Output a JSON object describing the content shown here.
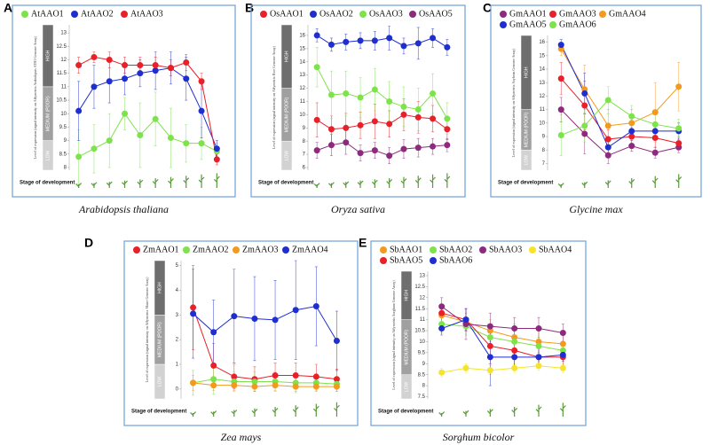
{
  "chart_data": [
    {
      "type": "line",
      "label": "A",
      "caption": "Arabidopsis thaliana",
      "xlabel": "Stage of development",
      "ylabel": "Level of expression (signal intensity on Affymetrix Arabidopsis ATH1 Genome Array)",
      "categories": [
        null,
        null,
        null,
        null,
        null,
        null,
        null,
        null,
        null,
        null
      ],
      "ylim": [
        7.9,
        13.3
      ],
      "yticks": [
        8,
        8.5,
        9,
        9.5,
        10,
        10.5,
        11,
        11.5,
        12,
        12.5,
        13
      ],
      "bands": [
        {
          "label": "LOW",
          "from": 7.9,
          "to": 9
        },
        {
          "label": "MEDIUM (POOR)",
          "from": 9,
          "to": 11
        },
        {
          "label": "HIGH",
          "from": 11,
          "to": 13.3
        }
      ],
      "series": [
        {
          "name": "AtAAO1",
          "color": "#7ee34a",
          "values": [
            8.4,
            8.7,
            9.0,
            10.0,
            9.2,
            9.8,
            9.1,
            8.9,
            8.9,
            8.6
          ],
          "errors": [
            1.0,
            0.9,
            1.0,
            0.6,
            1.2,
            1.0,
            1.1,
            0.7,
            0.6,
            0.3
          ]
        },
        {
          "name": "AtAAO2",
          "color": "#1f2ecf",
          "values": [
            10.1,
            11.0,
            11.2,
            11.3,
            11.5,
            11.6,
            11.7,
            11.3,
            10.1,
            8.7
          ],
          "errors": [
            1.1,
            0.8,
            0.8,
            0.6,
            0.5,
            0.7,
            0.6,
            0.8,
            1.0,
            0.3
          ]
        },
        {
          "name": "AtAAO3",
          "color": "#e8202a",
          "values": [
            11.8,
            12.1,
            12.0,
            11.8,
            11.8,
            11.8,
            11.7,
            11.9,
            11.2,
            8.3
          ],
          "errors": [
            0.3,
            0.2,
            0.3,
            0.3,
            0.3,
            0.3,
            0.3,
            0.3,
            0.3,
            0.2
          ]
        }
      ]
    },
    {
      "type": "line",
      "label": "B",
      "caption": "Oryza sativa",
      "xlabel": "Stage of development",
      "ylabel": "Level of expression (signal intensity on Affymetrix Rice Genome Array)",
      "categories": [
        null,
        null,
        null,
        null,
        null,
        null,
        null,
        null,
        null,
        null
      ],
      "ylim": [
        5.8,
        16.8
      ],
      "yticks": [
        6,
        7,
        8,
        9,
        10,
        11,
        12,
        13,
        14,
        15,
        16
      ],
      "bands": [
        {
          "label": "LOW",
          "from": 5.8,
          "to": 8
        },
        {
          "label": "MEDIUM (POOR)",
          "from": 8,
          "to": 12
        },
        {
          "label": "HIGH",
          "from": 12,
          "to": 16.8
        }
      ],
      "series": [
        {
          "name": "OsAAO1",
          "color": "#e8202a",
          "values": [
            9.6,
            8.9,
            9.0,
            9.2,
            9.5,
            9.3,
            10.0,
            9.8,
            9.7,
            8.9
          ],
          "errors": [
            1.3,
            1.0,
            1.1,
            1.0,
            1.3,
            1.0,
            1.2,
            1.2,
            1.0,
            0.8
          ]
        },
        {
          "name": "OsAAO2",
          "color": "#1f2ecf",
          "values": [
            16.0,
            15.3,
            15.5,
            15.6,
            15.6,
            15.8,
            15.2,
            15.4,
            15.8,
            15.1
          ],
          "errors": [
            0.5,
            0.5,
            0.6,
            0.6,
            0.7,
            0.9,
            0.6,
            1.2,
            0.7,
            0.6
          ]
        },
        {
          "name": "OsAAO3",
          "color": "#7ee34a",
          "values": [
            13.6,
            11.5,
            11.6,
            11.3,
            11.9,
            11.0,
            10.6,
            10.4,
            11.6,
            9.7
          ],
          "errors": [
            1.5,
            1.8,
            1.7,
            1.5,
            1.6,
            1.5,
            1.5,
            1.6,
            1.5,
            1.2
          ]
        },
        {
          "name": "OsAAO5",
          "color": "#8e2a7e",
          "values": [
            7.3,
            7.7,
            7.9,
            7.1,
            7.3,
            6.9,
            7.4,
            7.5,
            7.6,
            7.7
          ],
          "errors": [
            0.6,
            0.8,
            0.9,
            0.6,
            0.6,
            0.6,
            0.7,
            0.7,
            0.6,
            0.5
          ]
        }
      ]
    },
    {
      "type": "line",
      "label": "C",
      "caption": "Glycine max",
      "xlabel": "Stage of development",
      "ylabel": "Level of expression (signal intensity on Affymetrix Soybean Genome Array)",
      "categories": [
        null,
        null,
        null,
        null,
        null,
        null
      ],
      "ylim": [
        6.5,
        16.5
      ],
      "yticks": [
        7,
        8,
        9,
        10,
        11,
        12,
        13,
        14,
        15,
        16
      ],
      "bands": [
        {
          "label": "LOW",
          "from": 6.5,
          "to": 8
        },
        {
          "label": "MEDIUM (POOR)",
          "from": 8,
          "to": 11
        },
        {
          "label": "HIGH",
          "from": 11,
          "to": 16.5
        }
      ],
      "series": [
        {
          "name": "GmAAO1",
          "color": "#8e2a7e",
          "values": [
            11.0,
            9.2,
            7.6,
            8.3,
            7.8,
            8.2
          ],
          "errors": [
            0.9,
            1.5,
            0.6,
            0.4,
            0.4,
            0.4
          ]
        },
        {
          "name": "GmAAO3",
          "color": "#e8202a",
          "values": [
            13.3,
            11.3,
            8.8,
            9.0,
            8.9,
            8.5
          ],
          "errors": [
            1.2,
            1.8,
            0.7,
            0.5,
            0.7,
            0.5
          ]
        },
        {
          "name": "GmAAO4",
          "color": "#f39a1e",
          "values": [
            15.5,
            12.5,
            9.8,
            10.0,
            10.8,
            12.7
          ],
          "errors": [
            0.5,
            1.8,
            1.2,
            1.0,
            2.2,
            1.8
          ]
        },
        {
          "name": "GmAAO5",
          "color": "#1f2ecf",
          "values": [
            15.8,
            12.2,
            8.2,
            9.4,
            9.4,
            9.4
          ],
          "errors": [
            0.4,
            1.5,
            0.6,
            0.6,
            0.6,
            0.6
          ]
        },
        {
          "name": "GmAAO6",
          "color": "#7ee34a",
          "values": [
            9.1,
            9.8,
            11.7,
            10.5,
            9.9,
            9.6
          ],
          "errors": [
            1.5,
            1.2,
            1.0,
            0.8,
            0.7,
            0.7
          ]
        }
      ]
    },
    {
      "type": "line",
      "label": "D",
      "caption": "Zea mays",
      "xlabel": "Stage of development",
      "ylabel": "Level of expression (signal intensity on Affymetrix Maize Genome Array)",
      "categories": [
        null,
        null,
        null,
        null,
        null,
        null,
        null,
        null
      ],
      "ylim": [
        -0.4,
        5.2
      ],
      "yticks": [
        0,
        1,
        2,
        3,
        4,
        5
      ],
      "bands": [
        {
          "label": "LOW",
          "from": -0.4,
          "to": 1
        },
        {
          "label": "MEDIUM (POOR)",
          "from": 1,
          "to": 3
        },
        {
          "label": "HIGH",
          "from": 3,
          "to": 5.2
        }
      ],
      "series": [
        {
          "name": "ZmAAO1",
          "color": "#e8202a",
          "values": [
            3.3,
            0.95,
            0.5,
            0.4,
            0.55,
            0.55,
            0.5,
            0.4
          ],
          "errors": [
            1.7,
            0.9,
            0.5,
            0.5,
            0.5,
            0.5,
            0.5,
            0.4
          ]
        },
        {
          "name": "ZmAAO2",
          "color": "#7ee34a",
          "values": [
            0.25,
            0.4,
            0.3,
            0.3,
            0.3,
            0.25,
            0.25,
            0.2
          ],
          "errors": [
            0.5,
            0.6,
            0.4,
            0.4,
            0.4,
            0.4,
            0.3,
            0.3
          ]
        },
        {
          "name": "ZmAAO3",
          "color": "#f39a1e",
          "values": [
            0.25,
            0.15,
            0.15,
            0.1,
            0.15,
            0.1,
            0.1,
            0.1
          ],
          "errors": [
            0.3,
            0.2,
            0.2,
            0.2,
            0.2,
            0.2,
            0.2,
            0.2
          ]
        },
        {
          "name": "ZmAAO4",
          "color": "#1f2ecf",
          "values": [
            3.05,
            2.3,
            2.95,
            2.85,
            2.8,
            3.2,
            3.35,
            1.95
          ],
          "errors": [
            1.8,
            1.3,
            1.9,
            1.7,
            1.6,
            2.0,
            1.6,
            1.2
          ]
        }
      ]
    },
    {
      "type": "line",
      "label": "E",
      "caption": "Sorghum bicolor",
      "xlabel": "Stage of development",
      "ylabel": "Level of expression (signal intensity on Affymetrix Sorghum Genome Array)",
      "categories": [
        null,
        null,
        null,
        null,
        null,
        null
      ],
      "ylim": [
        7.4,
        13.2
      ],
      "yticks": [
        7.5,
        8,
        8.5,
        9,
        9.5,
        10,
        10.5,
        11,
        11.5,
        12,
        12.5,
        13
      ],
      "bands": [
        {
          "label": "LOW",
          "from": 7.4,
          "to": 8.5
        },
        {
          "label": "MEDIUM (POOR)",
          "from": 8.5,
          "to": 11
        },
        {
          "label": "HIGH",
          "from": 11,
          "to": 13.2
        }
      ],
      "series": [
        {
          "name": "SbAAO1",
          "color": "#f39a1e",
          "values": [
            11.2,
            10.9,
            10.5,
            10.2,
            10.0,
            9.9
          ],
          "errors": [
            0.4,
            0.4,
            0.5,
            0.6,
            0.5,
            0.5
          ]
        },
        {
          "name": "SbAAO2",
          "color": "#7ee34a",
          "values": [
            10.8,
            10.7,
            10.2,
            10.0,
            9.8,
            9.6
          ],
          "errors": [
            0.4,
            0.4,
            0.4,
            0.5,
            0.4,
            0.4
          ]
        },
        {
          "name": "SbAAO3",
          "color": "#8e2a7e",
          "values": [
            11.6,
            10.8,
            10.7,
            10.6,
            10.6,
            10.4
          ],
          "errors": [
            0.4,
            0.7,
            0.6,
            0.5,
            0.5,
            0.4
          ]
        },
        {
          "name": "SbAAO4",
          "color": "#f5e52a",
          "values": [
            8.6,
            8.8,
            8.7,
            8.8,
            8.9,
            8.8
          ],
          "errors": [
            0.2,
            0.2,
            0.2,
            0.2,
            0.2,
            0.2
          ]
        },
        {
          "name": "SbAAO5",
          "color": "#e8202a",
          "values": [
            11.3,
            11.0,
            9.8,
            9.6,
            9.3,
            9.3
          ],
          "errors": [
            0.4,
            0.5,
            0.8,
            0.7,
            0.5,
            0.4
          ]
        },
        {
          "name": "SbAAO6",
          "color": "#1f2ecf",
          "values": [
            10.6,
            11.0,
            9.3,
            9.3,
            9.3,
            9.4
          ],
          "errors": [
            0.3,
            0.5,
            1.3,
            0.4,
            0.4,
            0.3
          ]
        }
      ]
    }
  ]
}
